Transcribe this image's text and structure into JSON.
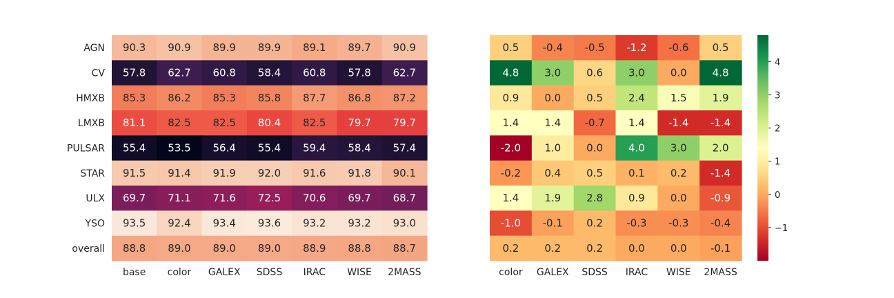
{
  "chart_data": [
    {
      "type": "heatmap",
      "title": "",
      "xlabel": "",
      "ylabel": "",
      "rows": [
        "AGN",
        "CV",
        "HMXB",
        "LMXB",
        "PULSAR",
        "STAR",
        "ULX",
        "YSO",
        "overall"
      ],
      "columns": [
        "base",
        "color",
        "GALEX",
        "SDSS",
        "IRAC",
        "WISE",
        "2MASS"
      ],
      "values": [
        [
          90.3,
          90.9,
          89.9,
          89.9,
          89.1,
          89.7,
          90.9
        ],
        [
          57.8,
          62.7,
          60.8,
          58.4,
          60.8,
          57.8,
          62.7
        ],
        [
          85.3,
          86.2,
          85.3,
          85.8,
          87.7,
          86.8,
          87.2
        ],
        [
          81.1,
          82.5,
          82.5,
          80.4,
          82.5,
          79.7,
          79.7
        ],
        [
          55.4,
          53.5,
          56.4,
          55.4,
          59.4,
          58.4,
          57.4
        ],
        [
          91.5,
          91.4,
          91.9,
          92.0,
          91.6,
          91.8,
          90.1
        ],
        [
          69.7,
          71.1,
          71.6,
          72.5,
          70.6,
          69.7,
          68.7
        ],
        [
          93.5,
          92.4,
          93.4,
          93.6,
          93.2,
          93.2,
          93.0
        ],
        [
          88.8,
          89.0,
          89.0,
          89.0,
          88.9,
          88.8,
          88.7
        ]
      ],
      "colormap": "rocket",
      "vrange": [
        53.5,
        93.6
      ],
      "annotation_format": "0.1f",
      "colorbar": false
    },
    {
      "type": "heatmap",
      "title": "",
      "xlabel": "",
      "ylabel": "",
      "rows": [
        "AGN",
        "CV",
        "HMXB",
        "LMXB",
        "PULSAR",
        "STAR",
        "ULX",
        "YSO",
        "overall"
      ],
      "columns": [
        "color",
        "GALEX",
        "SDSS",
        "IRAC",
        "WISE",
        "2MASS"
      ],
      "values": [
        [
          0.5,
          -0.4,
          -0.5,
          -1.2,
          -0.6,
          0.5
        ],
        [
          4.8,
          3.0,
          0.6,
          3.0,
          0.0,
          4.8
        ],
        [
          0.9,
          0.0,
          0.5,
          2.4,
          1.5,
          1.9
        ],
        [
          1.4,
          1.4,
          -0.7,
          1.4,
          -1.4,
          -1.4
        ],
        [
          -2.0,
          1.0,
          0.0,
          4.0,
          3.0,
          2.0
        ],
        [
          -0.2,
          0.4,
          0.5,
          0.1,
          0.2,
          -1.4
        ],
        [
          1.4,
          1.9,
          2.8,
          0.9,
          0.0,
          -0.9
        ],
        [
          -1.0,
          -0.1,
          0.2,
          -0.3,
          -0.3,
          -0.4
        ],
        [
          0.2,
          0.2,
          0.2,
          0.0,
          0.0,
          -0.1
        ]
      ],
      "colormap": "RdYlGn",
      "vrange": [
        -2.0,
        4.8
      ],
      "annotation_format": "0.1f",
      "colorbar": true,
      "colorbar_ticks": [
        -1,
        0,
        1,
        2,
        3,
        4
      ],
      "colorbar_tick_labels": [
        "−1",
        "0",
        "1",
        "2",
        "3",
        "4"
      ]
    }
  ]
}
